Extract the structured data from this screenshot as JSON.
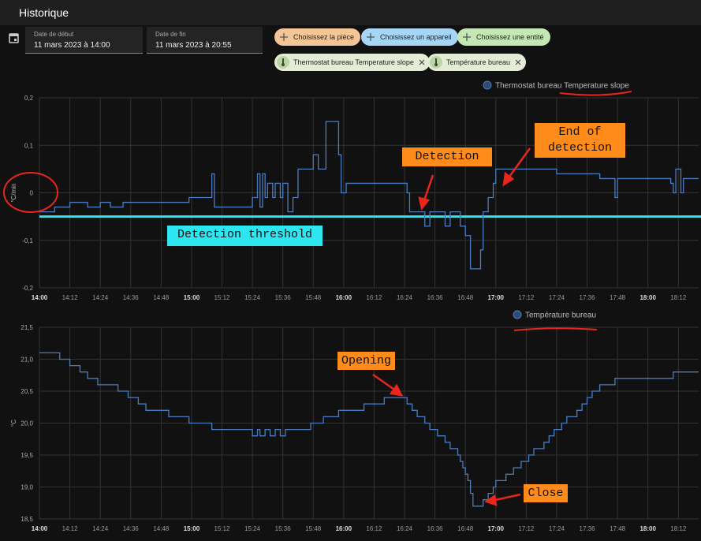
{
  "header": {
    "title": "Historique"
  },
  "date_range": {
    "start_label": "Date de début",
    "start": "11 mars 2023 à 14:00",
    "end_label": "Date de fin",
    "end": "11 mars 2023 à 20:55"
  },
  "pickers": [
    "Choisissez la pièce",
    "Choisissez un appareil",
    "Choisissez une entité"
  ],
  "selected_entities": [
    "Thermostat bureau Temperature slope",
    "Température bureau"
  ],
  "chart_data": [
    {
      "type": "line",
      "step": true,
      "ylabel": "°C/min",
      "grid": true,
      "xlim": [
        "14:00",
        "18:20"
      ],
      "xticks": [
        "14:00",
        "14:12",
        "14:24",
        "14:36",
        "14:48",
        "15:00",
        "15:12",
        "15:24",
        "15:36",
        "15:48",
        "16:00",
        "16:12",
        "16:24",
        "16:36",
        "16:48",
        "17:00",
        "17:12",
        "17:24",
        "17:36",
        "17:48",
        "18:00",
        "18:12"
      ],
      "ylim": [
        -0.2,
        0.2
      ],
      "yticks": [
        {
          "value": -0.2,
          "label": "-0,2"
        },
        {
          "value": -0.1,
          "label": "-0,1"
        },
        0,
        {
          "value": 0.1,
          "label": "0,1"
        },
        {
          "value": 0.2,
          "label": "0,2"
        }
      ],
      "series": [
        {
          "name": "Thermostat bureau Temperature slope",
          "color": "#4a7cbf",
          "x": [
            "14:00",
            "14:06",
            "14:12",
            "14:19",
            "14:24",
            "14:28",
            "14:33",
            "14:59",
            "15:08",
            "15:09",
            "15:24",
            "15:26",
            "15:27",
            "15:28",
            "15:29",
            "15:30",
            "15:32",
            "15:33",
            "15:35",
            "15:36",
            "15:38",
            "15:40",
            "15:42",
            "15:48",
            "15:50",
            "15:53",
            "15:58",
            "15:59",
            "16:01",
            "16:25",
            "16:26",
            "16:32",
            "16:34",
            "16:40",
            "16:42",
            "16:46",
            "16:48",
            "16:50",
            "16:54",
            "16:55",
            "16:57",
            "16:59",
            "17:00",
            "17:24",
            "17:41",
            "17:47",
            "17:48",
            "18:09",
            "18:10",
            "18:11",
            "18:13",
            "18:14"
          ],
          "values": [
            -0.04,
            -0.03,
            -0.02,
            -0.03,
            -0.02,
            -0.03,
            -0.02,
            -0.01,
            0.04,
            -0.03,
            -0.01,
            0.04,
            -0.03,
            0.04,
            -0.01,
            0.02,
            -0.01,
            0.02,
            -0.01,
            0.02,
            -0.04,
            -0.01,
            0.05,
            0.08,
            0.05,
            0.15,
            0.08,
            0,
            0.02,
            0,
            -0.04,
            -0.07,
            -0.04,
            -0.07,
            -0.04,
            -0.07,
            -0.09,
            -0.16,
            -0.12,
            -0.04,
            -0.01,
            0.02,
            0.05,
            0.04,
            0.03,
            -0.01,
            0.03,
            0.02,
            0,
            0.05,
            0,
            0.03
          ]
        }
      ],
      "threshold": -0.05,
      "threshold_color": "#2ee6f0",
      "annotations": [
        "Detection",
        "End of detection",
        "Detection threshold"
      ]
    },
    {
      "type": "line",
      "step": true,
      "ylabel": "°C",
      "grid": true,
      "xlim": [
        "14:00",
        "18:20"
      ],
      "xticks": [
        "14:00",
        "14:12",
        "14:24",
        "14:36",
        "14:48",
        "15:00",
        "15:12",
        "15:24",
        "15:36",
        "15:48",
        "16:00",
        "16:12",
        "16:24",
        "16:36",
        "16:48",
        "17:00",
        "17:12",
        "17:24",
        "17:36",
        "17:48",
        "18:00",
        "18:12"
      ],
      "ylim": [
        18.5,
        21.5
      ],
      "yticks": [
        {
          "value": 18.5,
          "label": "18,5"
        },
        {
          "value": 19,
          "label": "19,0"
        },
        {
          "value": 19.5,
          "label": "19,5"
        },
        {
          "value": 20,
          "label": "20,0"
        },
        {
          "value": 20.5,
          "label": "20,5"
        },
        {
          "value": 21,
          "label": "21,0"
        },
        {
          "value": 21.5,
          "label": "21,5"
        }
      ],
      "series": [
        {
          "name": "Température bureau",
          "color": "#4a7cbf",
          "x": [
            "14:00",
            "14:08",
            "14:12",
            "14:16",
            "14:19",
            "14:23",
            "14:31",
            "14:35",
            "14:39",
            "14:42",
            "14:51",
            "14:59",
            "15:08",
            "15:24",
            "15:26",
            "15:27",
            "15:29",
            "15:31",
            "15:33",
            "15:35",
            "15:37",
            "15:47",
            "15:52",
            "15:58",
            "16:08",
            "16:16",
            "16:25",
            "16:27",
            "16:29",
            "16:32",
            "16:34",
            "16:37",
            "16:40",
            "16:42",
            "16:45",
            "16:46",
            "16:47",
            "16:48",
            "16:49",
            "16:50",
            "16:51",
            "16:55",
            "16:57",
            "16:59",
            "17:00",
            "17:04",
            "17:07",
            "17:10",
            "17:13",
            "17:15",
            "17:19",
            "17:21",
            "17:23",
            "17:26",
            "17:28",
            "17:32",
            "17:34",
            "17:36",
            "17:38",
            "17:41",
            "17:47",
            "18:10"
          ],
          "values": [
            21.1,
            21.0,
            20.9,
            20.8,
            20.7,
            20.6,
            20.5,
            20.4,
            20.3,
            20.2,
            20.1,
            20.0,
            19.9,
            19.8,
            19.9,
            19.8,
            19.9,
            19.8,
            19.9,
            19.8,
            19.9,
            20.0,
            20.1,
            20.2,
            20.3,
            20.4,
            20.3,
            20.2,
            20.1,
            20.0,
            19.9,
            19.8,
            19.7,
            19.6,
            19.5,
            19.4,
            19.3,
            19.2,
            19.1,
            18.9,
            18.7,
            18.8,
            18.9,
            19.0,
            19.1,
            19.2,
            19.3,
            19.4,
            19.5,
            19.6,
            19.7,
            19.8,
            19.9,
            20.0,
            20.1,
            20.2,
            20.3,
            20.4,
            20.5,
            20.6,
            20.7,
            20.8
          ]
        }
      ],
      "annotations": [
        "Opening",
        "Close"
      ]
    }
  ]
}
